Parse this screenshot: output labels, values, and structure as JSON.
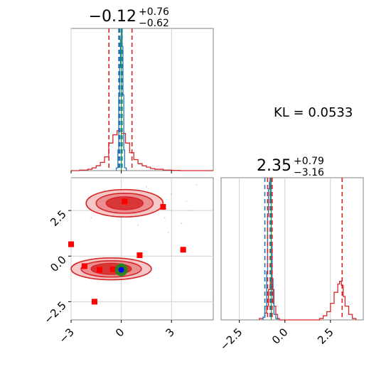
{
  "chart_data": [
    {
      "panel": "marginal-x",
      "type": "histogram",
      "title": {
        "main": "−0.12",
        "sup": "+0.76",
        "sub": "−0.62"
      },
      "xlim": [
        -3,
        5.5
      ],
      "series": [
        {
          "name": "",
          "color": "#d62728",
          "bins": [
            -3.0,
            -2.5,
            -2.0,
            -1.75,
            -1.5,
            -1.25,
            -1.0,
            -0.75,
            -0.5,
            -0.25,
            0.0,
            0.25,
            0.5,
            0.75,
            1.0,
            1.25,
            1.5,
            1.75,
            2.0,
            2.5,
            3.0,
            3.5,
            5.5
          ],
          "heights": [
            0,
            0.004,
            0.01,
            0.02,
            0.035,
            0.06,
            0.1,
            0.2,
            0.26,
            0.29,
            0.27,
            0.2,
            0.13,
            0.08,
            0.05,
            0.035,
            0.025,
            0.015,
            0.01,
            0.004,
            0.002,
            0
          ]
        },
        {
          "name": "",
          "color": "#1f77b4",
          "bins": [
            -0.3,
            -0.2,
            -0.15,
            -0.1,
            -0.05,
            0.0,
            0.05,
            0.1,
            0.15,
            0.2,
            0.3
          ],
          "heights": [
            0.02,
            0.15,
            0.55,
            0.75,
            0.95,
            1.0,
            0.9,
            0.55,
            0.15,
            0.02
          ]
        }
      ],
      "quantile_lines": [
        {
          "x": -0.74,
          "color": "#d62728"
        },
        {
          "x": 0.64,
          "color": "#d62728"
        },
        {
          "x": -0.12,
          "color": "#d62728"
        },
        {
          "x": -0.08,
          "color": "#1f77b4"
        },
        {
          "x": -0.15,
          "color": "#1f77b4"
        },
        {
          "x": 0.05,
          "color": "#1f77b4"
        }
      ],
      "truth": {
        "x": 0.0,
        "color": "#2ca02c"
      }
    },
    {
      "panel": "joint",
      "type": "contour-scatter",
      "xlim": [
        -3,
        5.5
      ],
      "ylim": [
        -3.5,
        4.3
      ],
      "x_ticks": [
        -3,
        0,
        3
      ],
      "x_tick_labels": [
        "−3",
        "0",
        "3"
      ],
      "y_ticks": [
        -2.5,
        0.0,
        2.5
      ],
      "y_tick_labels": [
        "−2.5",
        "0.0",
        "2.5"
      ],
      "grid": true,
      "modes": [
        {
          "cx": 0.2,
          "cy": 2.9,
          "levels": [
            [
              2.3,
              0.75
            ],
            [
              1.7,
              0.55
            ],
            [
              1.1,
              0.35
            ]
          ]
        },
        {
          "cx": -0.6,
          "cy": -0.7,
          "levels": [
            [
              2.4,
              0.6
            ],
            [
              1.8,
              0.45
            ],
            [
              1.2,
              0.3
            ]
          ]
        }
      ],
      "red_squares": [
        [
          0.2,
          3.0
        ],
        [
          2.5,
          2.7
        ],
        [
          1.1,
          0.05
        ],
        [
          3.7,
          0.35
        ],
        [
          -3.0,
          0.65
        ],
        [
          -2.2,
          -0.55
        ],
        [
          -1.3,
          -0.75
        ],
        [
          -0.5,
          -0.72
        ],
        [
          -1.6,
          -2.5
        ]
      ],
      "green_disk": {
        "x": 0.0,
        "y": -0.75
      },
      "blue_point": {
        "x": 0.0,
        "y": -0.75
      },
      "faint_points": [
        [
          1.5,
          3.8
        ],
        [
          2.2,
          3.3
        ],
        [
          3.0,
          3.4
        ],
        [
          4.2,
          2.5
        ],
        [
          3.6,
          1.8
        ],
        [
          2.8,
          1.3
        ],
        [
          -1.0,
          3.6
        ],
        [
          -1.8,
          2.1
        ],
        [
          1.0,
          1.7
        ],
        [
          4.5,
          3.9
        ],
        [
          2.6,
          2.1
        ],
        [
          3.9,
          3.0
        ]
      ]
    },
    {
      "panel": "marginal-y",
      "type": "histogram",
      "title": {
        "main": "2.35",
        "sup": "+0.79",
        "sub": "−3.16"
      },
      "xlim": [
        -3.5,
        4.3
      ],
      "x_ticks": [
        -2.5,
        0.0,
        2.5
      ],
      "x_tick_labels": [
        "−2.5",
        "0.0",
        "2.5"
      ],
      "series": [
        {
          "name": "",
          "color": "#d62728",
          "bins": [
            -1.4,
            -1.2,
            -1.1,
            -1.0,
            -0.9,
            -0.8,
            -0.7,
            -0.6,
            -0.5,
            -0.4,
            -0.3,
            1.9,
            2.1,
            2.3,
            2.5,
            2.7,
            2.9,
            3.0,
            3.1,
            3.2,
            3.3,
            3.5,
            3.7,
            3.9
          ],
          "heights": [
            0.01,
            0.02,
            0.05,
            0.1,
            0.22,
            0.3,
            0.22,
            0.1,
            0.04,
            0.01,
            0,
            0.01,
            0.03,
            0.06,
            0.12,
            0.2,
            0.26,
            0.28,
            0.25,
            0.17,
            0.1,
            0.04,
            0.01
          ]
        },
        {
          "name": "",
          "color": "#1f77b4",
          "bins": [
            -1.2,
            -1.1,
            -1.0,
            -0.95,
            -0.9,
            -0.85,
            -0.8,
            -0.75,
            -0.7,
            -0.65,
            -0.6,
            -0.5,
            -0.4
          ],
          "heights": [
            0.02,
            0.1,
            0.35,
            0.75,
            0.95,
            1.0,
            0.85,
            0.55,
            0.3,
            0.12,
            0.04,
            0.01
          ]
        }
      ],
      "quantile_lines": [
        {
          "x": 3.14,
          "color": "#d62728"
        },
        {
          "x": -0.81,
          "color": "#d62728"
        },
        {
          "x": -0.95,
          "color": "#d62728"
        },
        {
          "x": -0.7,
          "color": "#d62728"
        },
        {
          "x": -1.1,
          "color": "#1f77b4"
        },
        {
          "x": -0.78,
          "color": "#1f77b4"
        }
      ],
      "truth": {
        "x": -0.75,
        "color": "#2ca02c"
      }
    }
  ],
  "annotation": {
    "kl_text": "KL = 0.0533"
  }
}
